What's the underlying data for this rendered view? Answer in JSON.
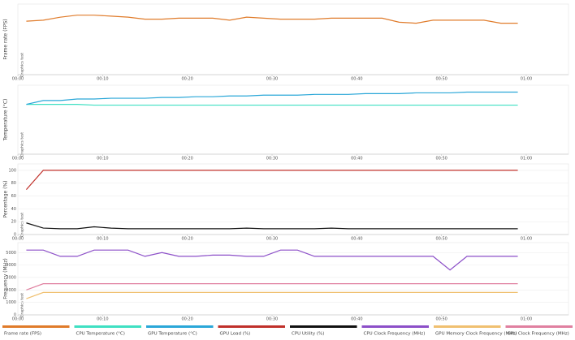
{
  "chart_data": [
    {
      "type": "line",
      "ylabel": "Frame rate (FPS)",
      "annotation": "Graphics test",
      "x": [
        1,
        3,
        5,
        7,
        9,
        11,
        13,
        15,
        17,
        19,
        21,
        23,
        25,
        27,
        29,
        31,
        33,
        35,
        37,
        39,
        41,
        43,
        45,
        47,
        49,
        51,
        53,
        55,
        57,
        59
      ],
      "xlim": [
        0,
        60
      ],
      "xticks": [
        {
          "value": 0,
          "label": "00:00"
        },
        {
          "value": 10,
          "label": "00:10"
        },
        {
          "value": 20,
          "label": "00:20"
        },
        {
          "value": 30,
          "label": "00:30"
        },
        {
          "value": 40,
          "label": "00:40"
        },
        {
          "value": 50,
          "label": "00:50"
        },
        {
          "value": 60,
          "label": "01:00"
        }
      ],
      "ylim": [
        0,
        70
      ],
      "series": [
        {
          "name": "Frame rate (FPS)",
          "color": "#e07b2a",
          "values": [
            53,
            54,
            57,
            59,
            59,
            58,
            57,
            55,
            55,
            56,
            56,
            56,
            54,
            57,
            56,
            55,
            55,
            55,
            56,
            56,
            56,
            56,
            52,
            51,
            54,
            54,
            54,
            54,
            51,
            51
          ]
        }
      ]
    },
    {
      "type": "line",
      "ylabel": "Temperature (°C)",
      "annotation": "Graphics test",
      "x": [
        1,
        3,
        5,
        7,
        9,
        11,
        13,
        15,
        17,
        19,
        21,
        23,
        25,
        27,
        29,
        31,
        33,
        35,
        37,
        39,
        41,
        43,
        45,
        47,
        49,
        51,
        53,
        55,
        57,
        59
      ],
      "xlim": [
        0,
        60
      ],
      "xticks": [
        {
          "value": 0,
          "label": "00:00"
        },
        {
          "value": 10,
          "label": "00:10"
        },
        {
          "value": 20,
          "label": "00:20"
        },
        {
          "value": 30,
          "label": "00:30"
        },
        {
          "value": 40,
          "label": "00:40"
        },
        {
          "value": 50,
          "label": "00:50"
        },
        {
          "value": 60,
          "label": "01:00"
        }
      ],
      "ylim": [
        0,
        90
      ],
      "series": [
        {
          "name": "CPU Temperature (°C)",
          "color": "#3fe0c2",
          "values": [
            65,
            65,
            65,
            65,
            64,
            64,
            64,
            64,
            64,
            64,
            64,
            64,
            64,
            64,
            64,
            64,
            64,
            64,
            64,
            64,
            64,
            64,
            64,
            64,
            64,
            64,
            64,
            64,
            64,
            64
          ]
        },
        {
          "name": "GPU Temperature (°C)",
          "color": "#2aa7d8",
          "values": [
            65,
            70,
            70,
            72,
            72,
            73,
            73,
            73,
            74,
            74,
            75,
            75,
            76,
            76,
            77,
            77,
            77,
            78,
            78,
            78,
            79,
            79,
            79,
            80,
            80,
            80,
            81,
            81,
            81,
            81
          ]
        }
      ]
    },
    {
      "type": "line",
      "ylabel": "Percentage (%)",
      "annotation": "Graphics test",
      "x": [
        1,
        3,
        5,
        7,
        9,
        11,
        13,
        15,
        17,
        19,
        21,
        23,
        25,
        27,
        29,
        31,
        33,
        35,
        37,
        39,
        41,
        43,
        45,
        47,
        49,
        51,
        53,
        55,
        57,
        59
      ],
      "xlim": [
        0,
        60
      ],
      "xticks": [
        {
          "value": 0,
          "label": "00:00"
        },
        {
          "value": 10,
          "label": "00:10"
        },
        {
          "value": 20,
          "label": "00:20"
        },
        {
          "value": 30,
          "label": "00:30"
        },
        {
          "value": 40,
          "label": "00:40"
        },
        {
          "value": 50,
          "label": "00:50"
        },
        {
          "value": 60,
          "label": "01:00"
        }
      ],
      "ylim": [
        0,
        110
      ],
      "yticks": [
        0,
        20,
        40,
        60,
        80,
        100
      ],
      "grid": true,
      "series": [
        {
          "name": "GPU Load (%)",
          "color": "#c0302a",
          "values": [
            70,
            100,
            100,
            100,
            100,
            100,
            100,
            100,
            100,
            100,
            100,
            100,
            100,
            100,
            100,
            100,
            100,
            100,
            100,
            100,
            100,
            100,
            100,
            100,
            100,
            100,
            100,
            100,
            100,
            100
          ]
        },
        {
          "name": "CPU Utility (%)",
          "color": "#111111",
          "values": [
            18,
            10,
            9,
            9,
            12,
            10,
            9,
            9,
            9,
            9,
            9,
            9,
            9,
            10,
            9,
            9,
            9,
            9,
            10,
            9,
            9,
            9,
            9,
            9,
            9,
            9,
            9,
            9,
            9,
            9
          ]
        }
      ]
    },
    {
      "type": "line",
      "ylabel": "Frequency (MHz)",
      "annotation": "Graphics test",
      "x": [
        1,
        3,
        5,
        7,
        9,
        11,
        13,
        15,
        17,
        19,
        21,
        23,
        25,
        27,
        29,
        31,
        33,
        35,
        37,
        39,
        41,
        43,
        45,
        47,
        49,
        51,
        53,
        55,
        57,
        59
      ],
      "xlim": [
        0,
        60
      ],
      "xticks": [
        {
          "value": 0,
          "label": "00:00"
        },
        {
          "value": 10,
          "label": "00:10"
        },
        {
          "value": 20,
          "label": "00:20"
        },
        {
          "value": 30,
          "label": "00:30"
        },
        {
          "value": 40,
          "label": "00:40"
        },
        {
          "value": 50,
          "label": "00:50"
        },
        {
          "value": 60,
          "label": "01:00"
        }
      ],
      "ylim": [
        0,
        5800
      ],
      "yticks": [
        0,
        1000,
        2000,
        3000,
        4000,
        5000
      ],
      "grid": true,
      "series": [
        {
          "name": "CPU Clock Frequency (MHz)",
          "color": "#8c4fc8",
          "values": [
            5200,
            5200,
            4700,
            4700,
            5200,
            5200,
            5200,
            4700,
            5000,
            4700,
            4700,
            4800,
            4800,
            4700,
            4700,
            5200,
            5200,
            4700,
            4700,
            4700,
            4700,
            4700,
            4700,
            4700,
            4700,
            3600,
            4700,
            4700,
            4700,
            4700
          ]
        },
        {
          "name": "GPU Memory Clock Frequency (MHz)",
          "color": "#f0c070",
          "values": [
            1300,
            1800,
            1800,
            1800,
            1800,
            1800,
            1800,
            1800,
            1800,
            1800,
            1800,
            1800,
            1800,
            1800,
            1800,
            1800,
            1800,
            1800,
            1800,
            1800,
            1800,
            1800,
            1800,
            1800,
            1800,
            1800,
            1800,
            1800,
            1800,
            1800
          ]
        },
        {
          "name": "GPU Clock Frequency (MHz)",
          "color": "#e080a0",
          "values": [
            2000,
            2500,
            2500,
            2500,
            2500,
            2500,
            2500,
            2500,
            2500,
            2500,
            2500,
            2500,
            2500,
            2500,
            2500,
            2500,
            2500,
            2500,
            2500,
            2500,
            2500,
            2500,
            2500,
            2500,
            2500,
            2500,
            2500,
            2500,
            2500,
            2500
          ]
        }
      ]
    }
  ]
}
